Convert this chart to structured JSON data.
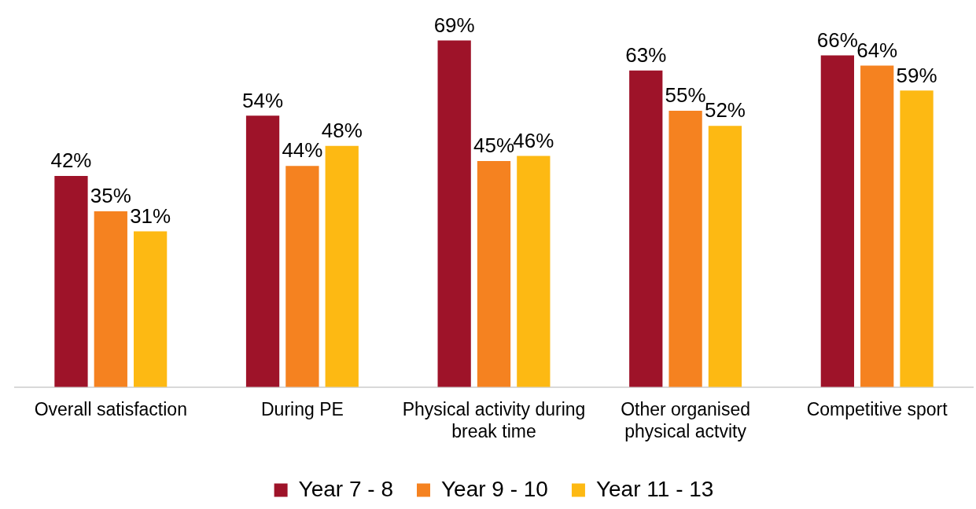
{
  "chart_data": {
    "type": "bar",
    "categories": [
      "Overall satisfaction",
      "During PE",
      "Physical activity during break time",
      "Other organised physical actvity",
      "Competitive sport"
    ],
    "series": [
      {
        "name": "Year 7 - 8",
        "color": "#9e1329",
        "values": [
          42,
          54,
          69,
          63,
          66
        ],
        "value_labels": [
          "42%",
          "54%",
          "69%",
          "63%",
          "66%"
        ]
      },
      {
        "name": "Year 9 - 10",
        "color": "#f58220",
        "values": [
          35,
          44,
          45,
          55,
          64
        ],
        "value_labels": [
          "35%",
          "44%",
          "45%",
          "55%",
          "64%"
        ]
      },
      {
        "name": "Year 11 - 13",
        "color": "#fdb913",
        "values": [
          31,
          48,
          46,
          52,
          59
        ],
        "value_labels": [
          "31%",
          "48%",
          "46%",
          "52%",
          "59%"
        ]
      }
    ],
    "legend": "bottom"
  }
}
